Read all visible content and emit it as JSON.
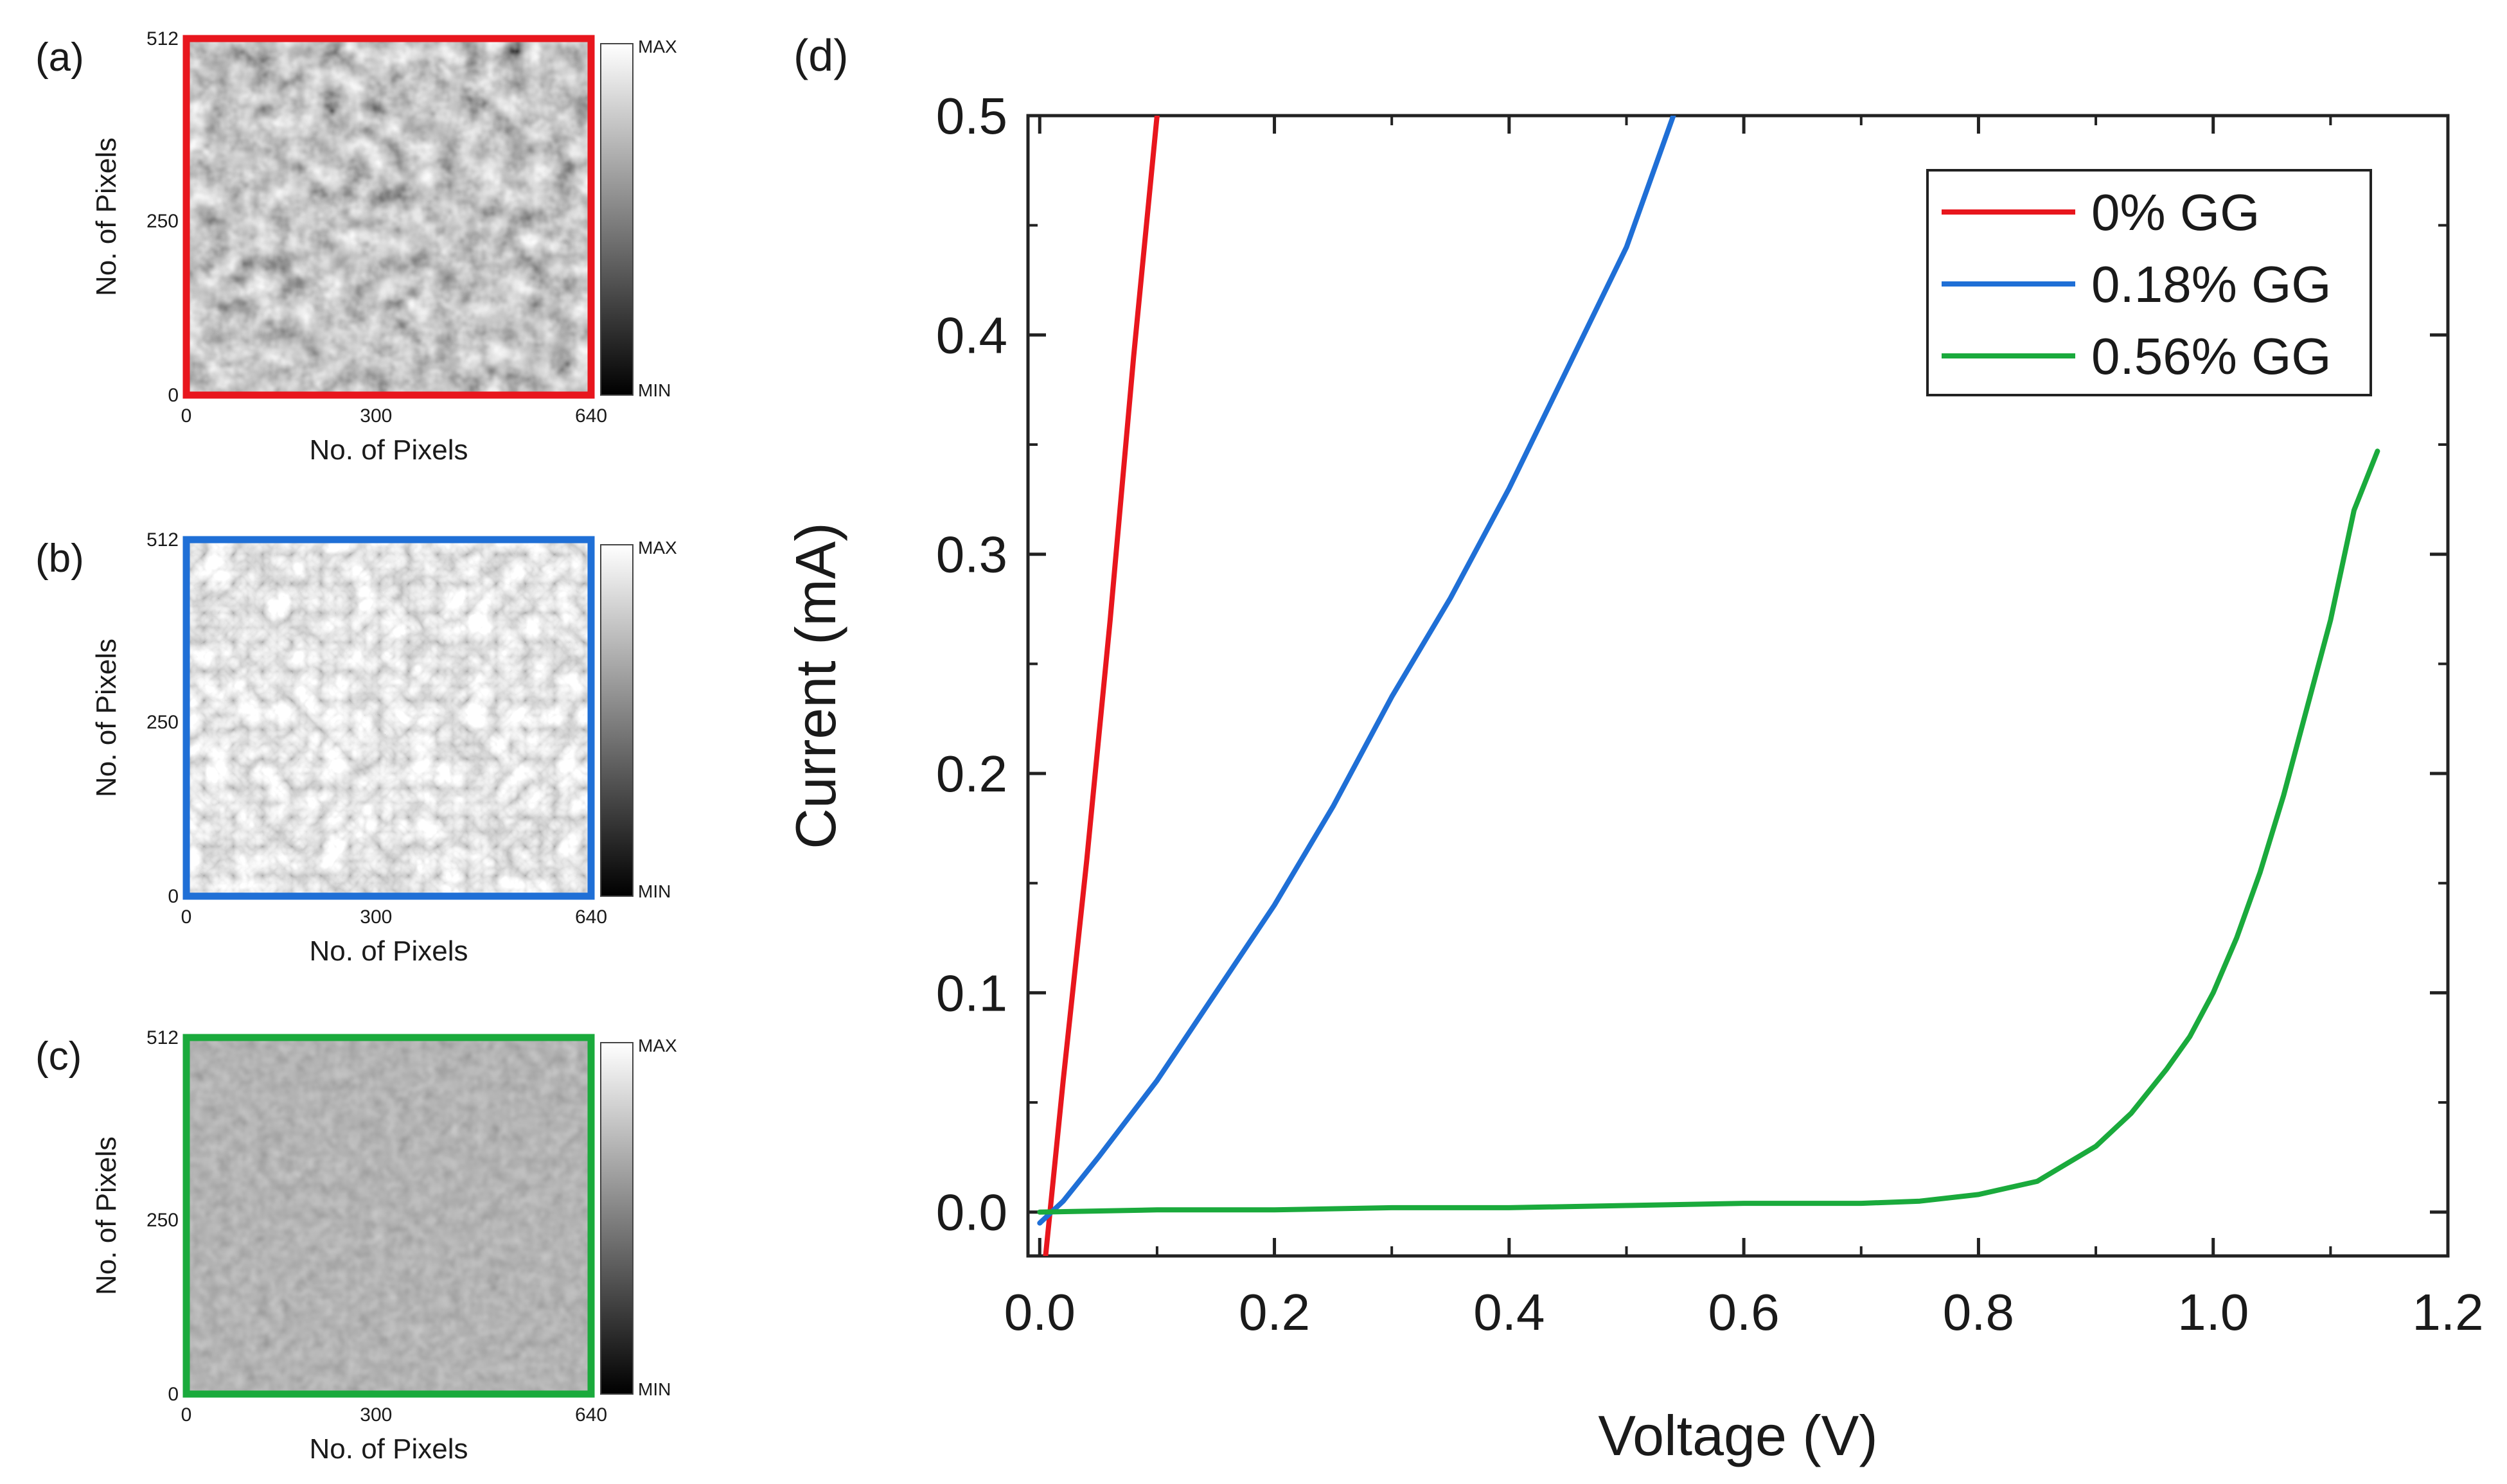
{
  "panels": [
    {
      "label": "(a)",
      "border_color": "#e8161d",
      "texture": "dark-mottled",
      "xlabel": "No. of Pixels",
      "ylabel": "No. of Pixels",
      "xticks": [
        "0",
        "300",
        "640"
      ],
      "yticks": [
        "0",
        "250",
        "512"
      ],
      "xlim": [
        0,
        640
      ],
      "ylim": [
        0,
        512
      ],
      "colorbar": {
        "max_label": "MAX",
        "min_label": "MIN"
      }
    },
    {
      "label": "(b)",
      "border_color": "#1f6fd6",
      "texture": "bright-fibrous",
      "xlabel": "No. of Pixels",
      "ylabel": "No. of Pixels",
      "xticks": [
        "0",
        "300",
        "640"
      ],
      "yticks": [
        "0",
        "250",
        "512"
      ],
      "xlim": [
        0,
        640
      ],
      "ylim": [
        0,
        512
      ],
      "colorbar": {
        "max_label": "MAX",
        "min_label": "MIN"
      }
    },
    {
      "label": "(c)",
      "border_color": "#1aaa3c",
      "texture": "flat-gray",
      "xlabel": "No. of Pixels",
      "ylabel": "No. of Pixels",
      "xticks": [
        "0",
        "300",
        "640"
      ],
      "yticks": [
        "0",
        "250",
        "512"
      ],
      "xlim": [
        0,
        640
      ],
      "ylim": [
        0,
        512
      ],
      "colorbar": {
        "max_label": "MAX",
        "min_label": "MIN"
      }
    }
  ],
  "chart_data": {
    "type": "line",
    "panel_label": "(d)",
    "xlabel": "Voltage (V)",
    "ylabel": "Current (mA)",
    "xlim": [
      -0.01,
      1.2
    ],
    "ylim": [
      -0.02,
      0.5
    ],
    "xticks": [
      "0.0",
      "0.2",
      "0.4",
      "0.6",
      "0.8",
      "1.0",
      "1.2"
    ],
    "yticks": [
      "0.0",
      "0.1",
      "0.2",
      "0.3",
      "0.4",
      "0.5"
    ],
    "legend_position": "top-right",
    "series": [
      {
        "name": "0% GG",
        "color": "#e8161d",
        "x": [
          0.005,
          0.02,
          0.04,
          0.06,
          0.08,
          0.1
        ],
        "y": [
          -0.02,
          0.06,
          0.16,
          0.27,
          0.39,
          0.5
        ]
      },
      {
        "name": "0.18% GG",
        "color": "#1f6fd6",
        "x": [
          0.0,
          0.02,
          0.05,
          0.1,
          0.15,
          0.2,
          0.25,
          0.3,
          0.35,
          0.4,
          0.45,
          0.5,
          0.54
        ],
        "y": [
          -0.005,
          0.005,
          0.025,
          0.06,
          0.1,
          0.14,
          0.185,
          0.235,
          0.28,
          0.33,
          0.385,
          0.44,
          0.5
        ]
      },
      {
        "name": "0.56% GG",
        "color": "#1aaa3c",
        "x": [
          0.0,
          0.1,
          0.2,
          0.3,
          0.4,
          0.5,
          0.6,
          0.7,
          0.75,
          0.8,
          0.85,
          0.9,
          0.93,
          0.96,
          0.98,
          1.0,
          1.02,
          1.04,
          1.06,
          1.08,
          1.1,
          1.12,
          1.14
        ],
        "y": [
          0.0,
          0.001,
          0.001,
          0.002,
          0.002,
          0.003,
          0.004,
          0.004,
          0.005,
          0.008,
          0.014,
          0.03,
          0.045,
          0.065,
          0.08,
          0.1,
          0.125,
          0.155,
          0.19,
          0.23,
          0.27,
          0.32,
          0.347
        ]
      }
    ]
  }
}
